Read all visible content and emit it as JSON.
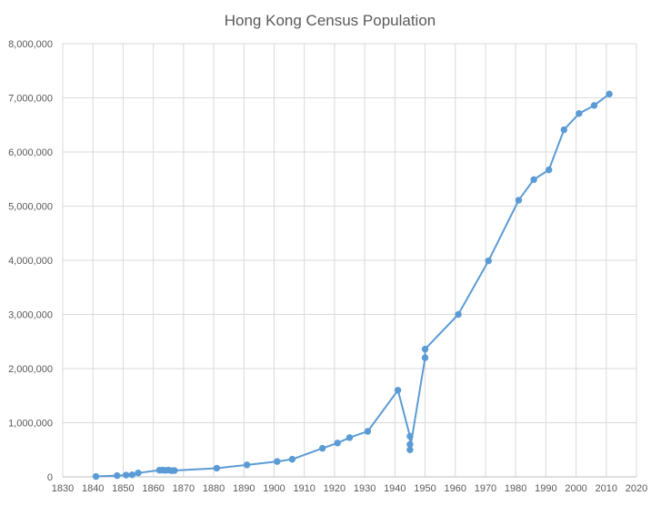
{
  "chart_data": {
    "type": "scatter",
    "title": "Hong Kong Census Population",
    "xlabel": "",
    "ylabel": "",
    "xlim": [
      1830,
      2020
    ],
    "ylim": [
      0,
      8000000
    ],
    "x_ticks": [
      1830,
      1840,
      1850,
      1860,
      1870,
      1880,
      1890,
      1900,
      1910,
      1920,
      1930,
      1940,
      1950,
      1960,
      1970,
      1980,
      1990,
      2000,
      2010,
      2020
    ],
    "y_ticks": [
      0,
      1000000,
      2000000,
      3000000,
      4000000,
      5000000,
      6000000,
      7000000,
      8000000
    ],
    "y_tick_labels": [
      "0",
      "1,000,000",
      "2,000,000",
      "3,000,000",
      "4,000,000",
      "5,000,000",
      "6,000,000",
      "7,000,000",
      "8,000,000"
    ],
    "grid": "vertical and horizontal",
    "legend": "none",
    "series_color": "#5b9bd5",
    "series": [
      {
        "points": [
          [
            1841,
            7450
          ],
          [
            1848,
            24000
          ],
          [
            1851,
            33000
          ],
          [
            1853,
            39000
          ],
          [
            1855,
            72600
          ],
          [
            1862,
            123500
          ],
          [
            1863,
            124800
          ],
          [
            1864,
            121500
          ],
          [
            1865,
            125500
          ],
          [
            1866,
            115100
          ],
          [
            1867,
            117800
          ],
          [
            1881,
            160400
          ],
          [
            1891,
            221400
          ],
          [
            1901,
            283900
          ],
          [
            1906,
            325600
          ],
          [
            1916,
            528100
          ],
          [
            1921,
            625200
          ],
          [
            1925,
            725000
          ],
          [
            1931,
            840500
          ],
          [
            1941,
            1600000
          ],
          [
            1945,
            750000
          ],
          [
            1945,
            600000
          ],
          [
            1945,
            500000
          ],
          [
            1950,
            2200000
          ],
          [
            1950,
            2360000
          ],
          [
            1961,
            3000000
          ],
          [
            1971,
            3990000
          ],
          [
            1981,
            5110000
          ],
          [
            1986,
            5490000
          ],
          [
            1991,
            5670000
          ],
          [
            1996,
            6410000
          ],
          [
            2001,
            6710000
          ],
          [
            2006,
            6860000
          ],
          [
            2011,
            7070000
          ]
        ]
      }
    ]
  }
}
